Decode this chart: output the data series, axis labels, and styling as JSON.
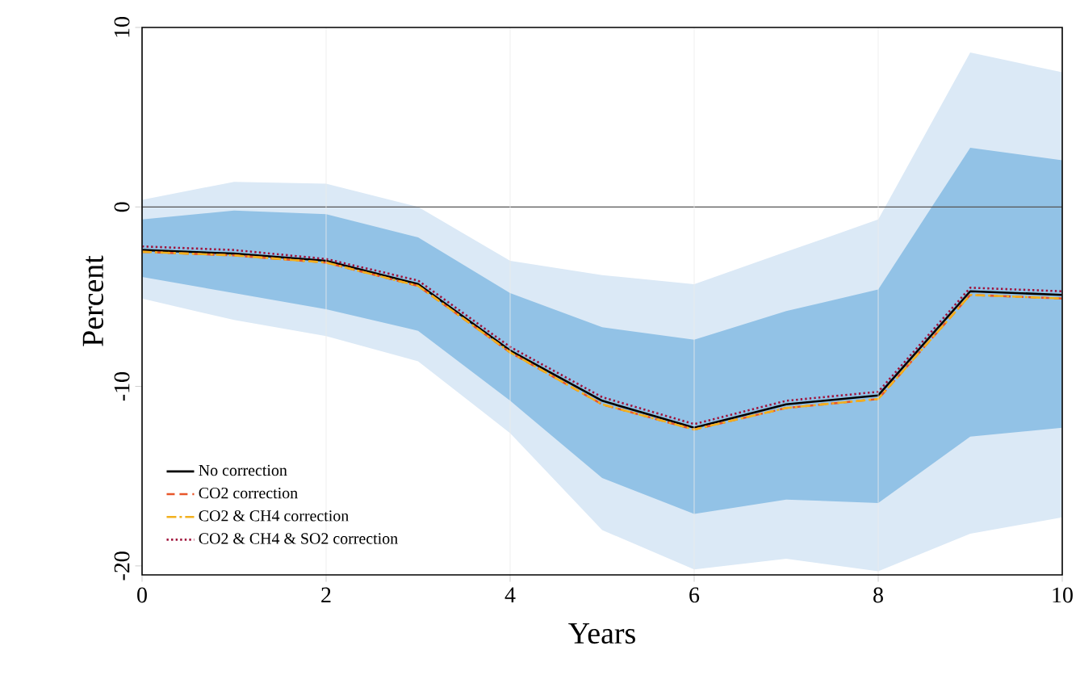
{
  "chart_data": {
    "type": "line",
    "xlabel": "Years",
    "ylabel": "Percent",
    "x": [
      0,
      1,
      2,
      3,
      4,
      5,
      6,
      7,
      8,
      9,
      10
    ],
    "series": [
      {
        "name": "No correction",
        "color": "#000000",
        "line_style": "solid",
        "values": [
          -2.4,
          -2.6,
          -3.0,
          -4.3,
          -8.0,
          -10.8,
          -12.3,
          -11.0,
          -10.5,
          -4.7,
          -4.9
        ],
        "lower": [
          -5.1,
          -6.3,
          -7.2,
          -8.6,
          -12.6,
          -18,
          -20.2,
          -19.6,
          -20.3,
          -18.2,
          -17.3
        ],
        "upper": [
          0.4,
          1.4,
          1.3,
          0,
          -3,
          -3.8,
          -4.3,
          -2.5,
          -0.7,
          8.6,
          7.5
        ]
      },
      {
        "name": "CO2 correction",
        "color": "#e8562a",
        "line_style": "dashed",
        "values": [
          -2.5,
          -2.7,
          -3.1,
          -4.4,
          -8.1,
          -11.0,
          -12.4,
          -11.2,
          -10.7,
          -4.9,
          -5.1
        ],
        "lower": [
          -3.9,
          -4.8,
          -5.7,
          -6.9,
          -10.8,
          -15.1,
          -17.1,
          -16.3,
          -16.5,
          -12.8,
          -12.3
        ],
        "upper": [
          -0.7,
          -0.2,
          -0.4,
          -1.7,
          -4.8,
          -6.7,
          -7.4,
          -5.8,
          -4.6,
          3.3,
          2.6
        ]
      },
      {
        "name": "CO2 & CH4 correction",
        "color": "#f2b01e",
        "line_style": "dashdot",
        "values": [
          -2.5,
          -2.7,
          -3.1,
          -4.4,
          -8.1,
          -11.0,
          -12.4,
          -11.2,
          -10.7,
          -4.9,
          -5.1
        ]
      },
      {
        "name": "CO2 & CH4 & SO2 correction",
        "color": "#a0143c",
        "line_style": "dotted",
        "values": [
          -2.2,
          -2.4,
          -2.9,
          -4.1,
          -7.8,
          -10.6,
          -12.1,
          -10.8,
          -10.3,
          -4.5,
          -4.7
        ]
      }
    ],
    "xlim": [
      0,
      10
    ],
    "ylim": [
      -20.5,
      10
    ],
    "xticks": [
      0,
      2,
      4,
      6,
      8,
      10
    ],
    "yticks": [
      -20,
      -10,
      0,
      10
    ],
    "ref_lines": [
      {
        "axis": "y",
        "value": 0,
        "color": "#555555"
      }
    ],
    "grid": "x",
    "legend": "bottom left",
    "marker": "none"
  }
}
